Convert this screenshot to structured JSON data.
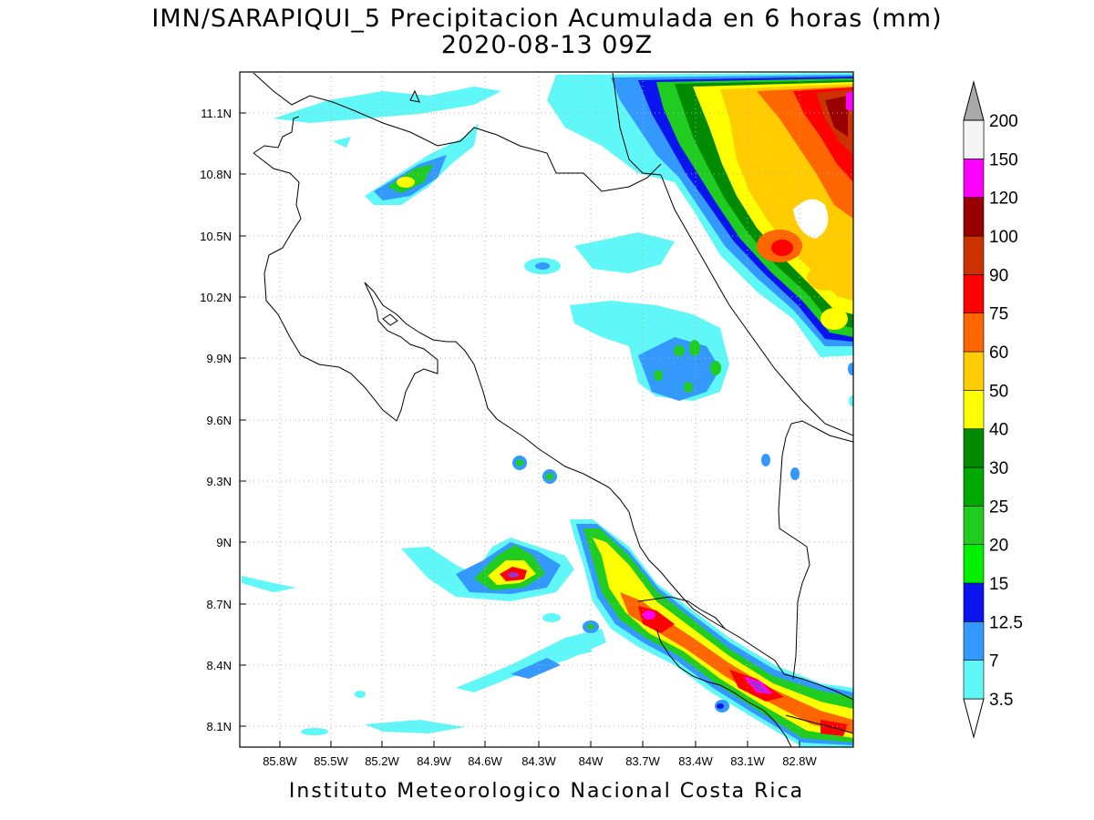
{
  "title": {
    "line1": "IMN/SARAPIQUI_5 Precipitacion Acumulada en 6 horas (mm)",
    "line2": "2020-08-13 09Z"
  },
  "footer": "Instituto Meteorologico Nacional Costa Rica",
  "axes": {
    "lon_ticks": [
      "85.8W",
      "85.5W",
      "85.2W",
      "84.9W",
      "84.6W",
      "84.3W",
      "84W",
      "83.7W",
      "83.4W",
      "83.1W",
      "82.8W"
    ],
    "lat_ticks": [
      "11.1N",
      "10.8N",
      "10.5N",
      "10.2N",
      "9.9N",
      "9.6N",
      "9.3N",
      "9N",
      "8.7N",
      "8.4N",
      "8.1N"
    ]
  },
  "colorbar": {
    "unit": "mm",
    "levels": [
      {
        "label": "3.5",
        "color": "#5ff7f7"
      },
      {
        "label": "7",
        "color": "#3399ff"
      },
      {
        "label": "12.5",
        "color": "#0a14ee"
      },
      {
        "label": "15",
        "color": "#00f000"
      },
      {
        "label": "20",
        "color": "#1fcc1f"
      },
      {
        "label": "25",
        "color": "#00a800"
      },
      {
        "label": "30",
        "color": "#008a00"
      },
      {
        "label": "40",
        "color": "#ffff00"
      },
      {
        "label": "50",
        "color": "#ffcc00"
      },
      {
        "label": "60",
        "color": "#ff6600"
      },
      {
        "label": "75",
        "color": "#ff0000"
      },
      {
        "label": "90",
        "color": "#cc3300"
      },
      {
        "label": "100",
        "color": "#990000"
      },
      {
        "label": "120",
        "color": "#ff00ff"
      },
      {
        "label": "150",
        "color": "#9933cc"
      },
      {
        "label": "200",
        "color": "#f5f5f5"
      }
    ],
    "over_color": "#aaaaaa",
    "under_color": "#ffffff"
  }
}
